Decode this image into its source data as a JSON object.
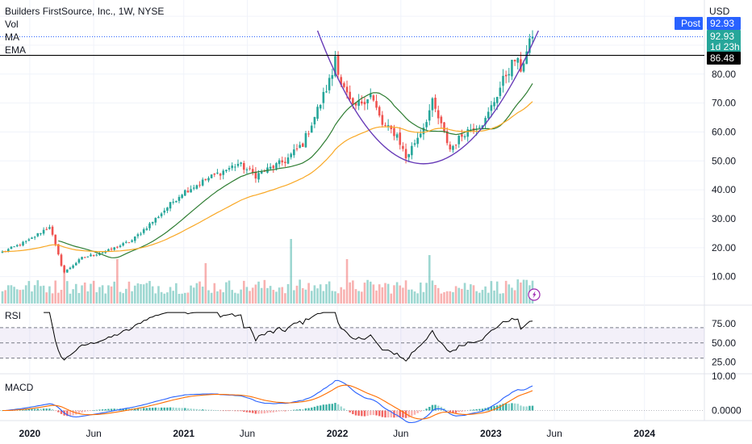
{
  "header": {
    "title": "Builders FirstSource, Inc., 1W, NYSE",
    "indicators": [
      "Vol",
      "MA",
      "EMA"
    ]
  },
  "price_axis": {
    "currency": "USD",
    "ticks": [
      "80.00",
      "70.00",
      "60.00",
      "50.00",
      "40.00",
      "30.00",
      "20.00",
      "10.00"
    ],
    "tick_values": [
      80,
      70,
      60,
      50,
      40,
      30,
      20,
      10
    ],
    "post_label": "Post",
    "post_price": "92.93",
    "last_price": "92.93",
    "countdown": "1d 23h",
    "level_price": "86.48",
    "colors": {
      "post": "#2962ff",
      "last": "#26a69a",
      "level": "#000000"
    }
  },
  "x_axis": {
    "ticks": [
      {
        "label": "2020",
        "bold": true
      },
      {
        "label": "Jun",
        "bold": false
      },
      {
        "label": "2021",
        "bold": true
      },
      {
        "label": "Jun",
        "bold": false
      },
      {
        "label": "2022",
        "bold": true
      },
      {
        "label": "Jun",
        "bold": false
      },
      {
        "label": "2023",
        "bold": true
      },
      {
        "label": "Jun",
        "bold": false
      },
      {
        "label": "2024",
        "bold": true
      }
    ]
  },
  "rsi": {
    "label": "RSI",
    "ticks": [
      "75.00",
      "50.00",
      "25.00"
    ],
    "tick_values": [
      75,
      50,
      25
    ],
    "upper": 70,
    "lower": 30
  },
  "macd": {
    "label": "MACD",
    "ticks": [
      "10.00",
      "0.0000"
    ],
    "tick_values": [
      10,
      0
    ]
  },
  "chart_data": {
    "type": "candlestick",
    "timeframe": "1W",
    "x_start": "2019-10-28",
    "x_ticks": [
      "2020",
      "Jun",
      "2021",
      "Jun",
      "2022",
      "Jun",
      "2023",
      "Jun",
      "2024"
    ],
    "y_range": [
      0,
      98
    ],
    "price_anchors": [
      [
        "2019-10-28",
        18.5
      ],
      [
        "2019-12-30",
        22.5
      ],
      [
        "2020-02-17",
        27.5
      ],
      [
        "2020-03-16",
        14.0
      ],
      [
        "2020-03-23",
        11.5
      ],
      [
        "2020-05-04",
        16.5
      ],
      [
        "2020-07-06",
        19.0
      ],
      [
        "2020-08-31",
        22.5
      ],
      [
        "2020-10-26",
        30.0
      ],
      [
        "2020-12-28",
        39.0
      ],
      [
        "2021-03-01",
        44.0
      ],
      [
        "2021-05-10",
        49.0
      ],
      [
        "2021-06-21",
        45.0
      ],
      [
        "2021-08-30",
        50.0
      ],
      [
        "2021-10-11",
        56.0
      ],
      [
        "2021-11-22",
        70.0
      ],
      [
        "2021-12-20",
        80.0
      ],
      [
        "2021-12-27",
        86.5
      ],
      [
        "2022-01-10",
        77.0
      ],
      [
        "2022-02-07",
        68.0
      ],
      [
        "2022-03-21",
        73.0
      ],
      [
        "2022-04-18",
        62.5
      ],
      [
        "2022-05-23",
        59.0
      ],
      [
        "2022-06-13",
        51.0
      ],
      [
        "2022-07-25",
        62.0
      ],
      [
        "2022-08-15",
        70.0
      ],
      [
        "2022-09-26",
        54.0
      ],
      [
        "2022-10-31",
        60.0
      ],
      [
        "2022-12-19",
        64.0
      ],
      [
        "2023-02-06",
        80.0
      ],
      [
        "2023-02-27",
        85.0
      ],
      [
        "2023-03-13",
        82.0
      ],
      [
        "2023-04-10",
        92.9
      ]
    ],
    "volume_peaks": [
      [
        "2020-07-27",
        0.55
      ],
      [
        "2021-09-13",
        0.8
      ],
      [
        "2020-03-23",
        0.45
      ],
      [
        "2022-01-24",
        0.55
      ],
      [
        "2022-08-08",
        0.6
      ],
      [
        "2021-02-22",
        0.5
      ]
    ],
    "ma_period": 20,
    "ema_period": 50,
    "rsi_period": 14,
    "macd_params": [
      12,
      26,
      9
    ],
    "rounding_bottom_arc": {
      "start": [
        "2021-11-15",
        95.0
      ],
      "bottom": [
        "2022-07-25",
        49.0
      ],
      "end": [
        "2023-04-24",
        95.0
      ]
    },
    "horizontal_level": 86.48,
    "colors": {
      "up": "#26a69a",
      "down": "#ef5350",
      "ma": "#2e7d32",
      "ema": "#f9a825",
      "arc": "#673ab7",
      "rsi": "#000000",
      "rsi_band": "#7e57c2",
      "macd": "#2962ff",
      "signal": "#ff6d00"
    }
  }
}
